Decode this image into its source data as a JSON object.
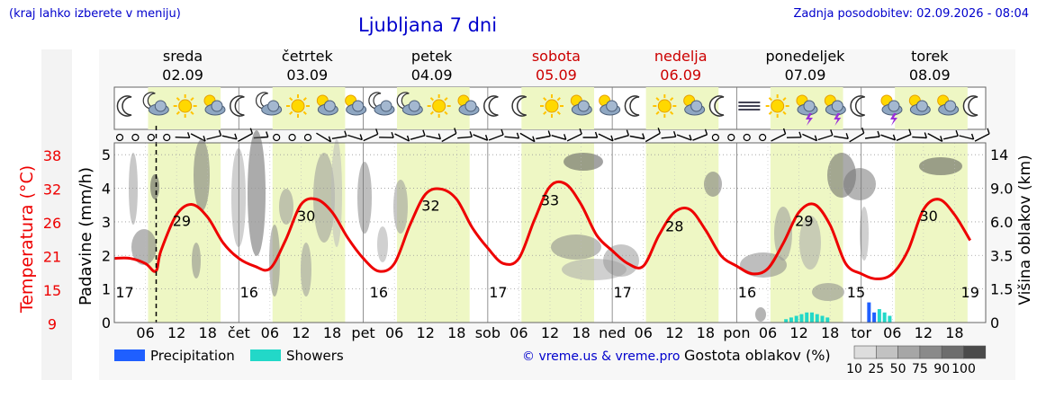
{
  "header": {
    "region_hint": "(kraj lahko izberete v meniju)",
    "title": "Ljubljana 7 dni",
    "updated": "Zadnja posodobitev: 02.09.2026 - 08:04"
  },
  "days": [
    {
      "name": "sreda",
      "date": "02.09",
      "weekend": false,
      "abbr": ""
    },
    {
      "name": "četrtek",
      "date": "03.09",
      "weekend": false,
      "abbr": "čet"
    },
    {
      "name": "petek",
      "date": "04.09",
      "weekend": false,
      "abbr": "pet"
    },
    {
      "name": "sobota",
      "date": "05.09",
      "weekend": true,
      "abbr": "sob"
    },
    {
      "name": "nedelja",
      "date": "06.09",
      "weekend": true,
      "abbr": "ned"
    },
    {
      "name": "ponedeljek",
      "date": "07.09",
      "weekend": false,
      "abbr": "pon"
    },
    {
      "name": "torek",
      "date": "08.09",
      "weekend": false,
      "abbr": "tor"
    }
  ],
  "hour_ticks": [
    "06",
    "12",
    "18"
  ],
  "axes": {
    "temp_label": "Temperatura (°C)",
    "temp_ticks": [
      "38",
      "32",
      "26",
      "21",
      "15",
      "9"
    ],
    "precip_label": "Padavine (mm/h)",
    "precip_ticks": [
      "5",
      "4",
      "3",
      "2",
      "1",
      "0"
    ],
    "cloud_label": "Višina oblakov (km)",
    "cloud_ticks": [
      "14",
      "9.0",
      "6.0",
      "3.5",
      "1.5",
      "0"
    ]
  },
  "legend": {
    "precipitation": "Precipitation",
    "showers": "Showers",
    "precip_color": "#1f5fff",
    "showers_color": "#22d8c8",
    "credit": "© vreme.us & vreme.pro",
    "cloud_density_title": "Gostota oblakov (%)",
    "cloud_density_values": [
      "10",
      "25",
      "50",
      "75",
      "90",
      "100"
    ]
  },
  "colors": {
    "header_blue": "#0000cc",
    "weekend_red": "#cc0000",
    "temperature_line": "#ee0000",
    "daylight_band": "#eef7c4"
  },
  "icons": [
    "moon-icon",
    "partly-cloudy-night-icon",
    "sun-icon",
    "partly-cloudy-icon",
    "moon-icon",
    "partly-cloudy-night-icon",
    "sun-icon",
    "partly-cloudy-icon",
    "partly-cloudy-icon",
    "cloudy-night-icon",
    "partly-cloudy-night-icon",
    "sun-icon",
    "partly-cloudy-icon",
    "moon-icon",
    "moon-icon",
    "sun-icon",
    "partly-cloudy-icon",
    "partly-cloudy-icon",
    "moon-icon",
    "sun-icon",
    "partly-cloudy-icon",
    "moon-icon",
    "fog-icon",
    "sun-icon",
    "thunderstorm-icon",
    "thunderstorm-icon",
    "moon-icon",
    "thunderstorm-icon",
    "partly-cloudy-icon",
    "partly-cloudy-icon",
    "moon-icon"
  ],
  "chart_data": {
    "type": "line",
    "title": "Ljubljana 7 dni",
    "x_unit": "hour from 02.09 00:00",
    "current_time_hour": 8.07,
    "temperature": {
      "unit": "°C",
      "ylim": [
        6,
        41
      ],
      "x": [
        0,
        3,
        6,
        8,
        9,
        12,
        15,
        18,
        21,
        24,
        27,
        30,
        33,
        36,
        39,
        42,
        45,
        48,
        51,
        54,
        57,
        60,
        63,
        66,
        69,
        72,
        75,
        78,
        81,
        84,
        87,
        90,
        93,
        96,
        99,
        102,
        105,
        108,
        111,
        114,
        117,
        120,
        123,
        126,
        129,
        132,
        135,
        138,
        141,
        144,
        147,
        150,
        153,
        156,
        159,
        162,
        165
      ],
      "values": [
        18.5,
        18.5,
        17.5,
        16.0,
        20.0,
        27.0,
        29.0,
        26.5,
        21.5,
        18.5,
        17.0,
        16.5,
        22.0,
        29.0,
        30.0,
        27.5,
        22.5,
        18.5,
        16.0,
        17.5,
        25.0,
        31.0,
        32.0,
        30.0,
        24.5,
        20.5,
        17.5,
        18.5,
        26.0,
        32.5,
        33.0,
        29.0,
        23.0,
        20.0,
        17.5,
        17.0,
        23.0,
        27.5,
        28.0,
        24.0,
        19.0,
        17.0,
        15.5,
        16.5,
        21.5,
        27.5,
        29.0,
        25.0,
        17.5,
        15.5,
        14.5,
        15.5,
        20.0,
        28.0,
        30.0,
        27.0,
        22.0
      ],
      "labels": [
        {
          "x": 2,
          "value": "17"
        },
        {
          "x": 13,
          "value": "29"
        },
        {
          "x": 26,
          "value": "16"
        },
        {
          "x": 37,
          "value": "30"
        },
        {
          "x": 51,
          "value": "16"
        },
        {
          "x": 61,
          "value": "32"
        },
        {
          "x": 74,
          "value": "17"
        },
        {
          "x": 84,
          "value": "33"
        },
        {
          "x": 98,
          "value": "17"
        },
        {
          "x": 108,
          "value": "28"
        },
        {
          "x": 122,
          "value": "16"
        },
        {
          "x": 133,
          "value": "29"
        },
        {
          "x": 143,
          "value": "15"
        },
        {
          "x": 157,
          "value": "30"
        },
        {
          "x": 165,
          "value": "19"
        }
      ]
    },
    "precipitation": {
      "unit": "mm/h",
      "ylim": [
        0,
        5
      ],
      "precip_bars": [
        {
          "x": 145.5,
          "value": 0.6
        },
        {
          "x": 146.5,
          "value": 0.3
        }
      ],
      "shower_bars": [
        {
          "x": 129.5,
          "value": 0.1
        },
        {
          "x": 130.5,
          "value": 0.15
        },
        {
          "x": 131.5,
          "value": 0.2
        },
        {
          "x": 132.5,
          "value": 0.25
        },
        {
          "x": 133.5,
          "value": 0.3
        },
        {
          "x": 134.5,
          "value": 0.3
        },
        {
          "x": 135.5,
          "value": 0.25
        },
        {
          "x": 136.5,
          "value": 0.2
        },
        {
          "x": 137.5,
          "value": 0.15
        },
        {
          "x": 147.5,
          "value": 0.4
        },
        {
          "x": 148.5,
          "value": 0.3
        },
        {
          "x": 149.5,
          "value": 0.2
        }
      ]
    },
    "cloud_height_km_ticks": [
      14,
      9.0,
      6.0,
      3.5,
      1.5,
      0
    ]
  }
}
